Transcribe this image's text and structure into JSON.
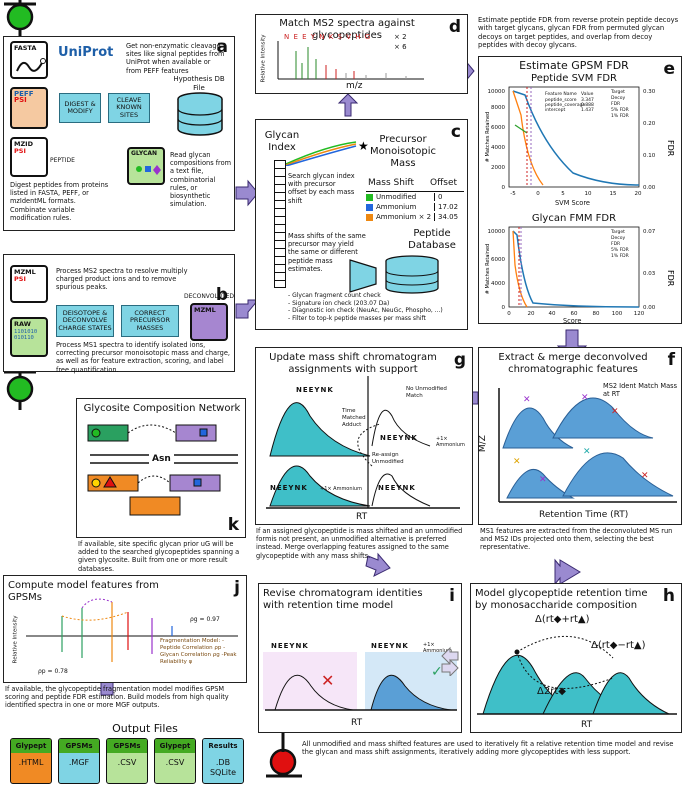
{
  "panel_a": {
    "label": "a",
    "uniprot": "UniProt",
    "uniprot_text": "Get non-enzymatic cleavage sites like signal peptides from UniProt when available or from PEFF features",
    "fasta": "FASTA",
    "peff": "PEFF",
    "psi": "PSI",
    "mzid": "MZID",
    "peptide": "PEPTIDE",
    "glycan": "GLYCAN",
    "digest": "DIGEST & MODIFY",
    "cleave": "CLEAVE KNOWN SITES",
    "db_title": "Hypothesis DB File",
    "digest_text": "Digest peptides from proteins listed in FASTA, PEFF, or mzIdentML formats. Combinate variable modification rules.",
    "glycan_text": "Read glycan compositions from a text file, combinatorial rules, or biosynthetic simulation."
  },
  "panel_b": {
    "label": "b",
    "mzml": "MZML",
    "psi": "PSI",
    "raw": "RAW",
    "raw_bits": "1101010\n010110",
    "deisotope": "DEISOTOPE & DECONVOLVE CHARGE STATES",
    "correct": "CORRECT PRECURSOR MASSES",
    "deconvoluted": "DECONVOLUTED",
    "top_text": "Process MS2 spectra to resolve multiply charged product ions and to remove spurious peaks.",
    "bottom_text": "Process MS1 spectra to identify isolated ions, correcting precursor monoisotopic mass and charge, as well as for feature extraction, scoring, and label free quantification."
  },
  "panel_c": {
    "label": "c",
    "glycan_index": "Glycan Index",
    "precursor": "Precursor Monoisotopic Mass",
    "search_text": "Search glycan index with precursor offset by each mass shift",
    "mass_shift": "Mass Shift",
    "offset": "Offset",
    "rows": [
      {
        "name": "Unmodified",
        "offset": "0",
        "color": "#22bb22"
      },
      {
        "name": "Ammonium",
        "offset": "17.02",
        "color": "#2266dd"
      },
      {
        "name": "Ammonium × 2",
        "offset": "34.05",
        "color": "#ee8811"
      }
    ],
    "mass_shift_text": "Mass shifts of the same precursor may yield the same or different peptide mass estimates.",
    "peptide_db": "Peptide Database",
    "checks": [
      "- Glycan fragment count check",
      "- Signature ion check (203.07 Da)",
      "- Diagnostic ion check (NeuAc, NeuGc, Phospho, ...)",
      "- Filter to top-k peptide masses per mass shift"
    ]
  },
  "panel_d": {
    "label": "d",
    "title": "Match MS2 spectra against glycopeptides",
    "ylabel": "Relative Intensity",
    "xlabel": "m/z",
    "sequence": "N E E Y N K S V H G",
    "x2": "× 2",
    "x6": "× 6"
  },
  "fdr_text": "Estimate peptide FDR from reverse protein peptide decoys with target glycans, glycan FDR from permuted glycan decoys on target peptides, and overlap from decoy peptides with decoy glycans.",
  "panel_e": {
    "label": "e",
    "title": "Estimate GPSM FDR",
    "svm_title": "Peptide SVM FDR",
    "svm_xlabel": "SVM Score",
    "svm_ylabel": "# Matches Retained",
    "fdr": "FDR",
    "svm_xticks": [
      "-5",
      "0",
      "5",
      "10",
      "15",
      "20"
    ],
    "svm_yticks": [
      "0",
      "2000",
      "4000",
      "6000",
      "8000",
      "10000"
    ],
    "fdr_ticks": [
      "0.00",
      "0.05",
      "0.10",
      "0.15",
      "0.20",
      "0.25",
      "0.30"
    ],
    "feature_table": {
      "headers": [
        "Feature Name",
        "Value"
      ],
      "rows": [
        [
          "peptide_score",
          "3.347"
        ],
        [
          "peptide_coverage",
          "0.888"
        ],
        [
          "intercept",
          "1.437"
        ]
      ]
    },
    "legend": [
      "Target",
      "Decoy",
      "FDR",
      "5% FDR",
      "1% FDR"
    ],
    "fmm_title": "Glycan FMM FDR",
    "fmm_xlabel": "Score",
    "fmm_xticks": [
      "0",
      "20",
      "40",
      "60",
      "80",
      "100",
      "120"
    ],
    "fmm_fdr_ticks": [
      "0.00",
      "0.01",
      "0.02",
      "0.03",
      "0.04",
      "0.05",
      "0.06",
      "0.07"
    ]
  },
  "panel_f": {
    "label": "f",
    "title": "Extract & merge deconvolved chromatographic features",
    "ms2_note": "MS2 Ident Match Mass at RT",
    "ylabel": "M/Z",
    "xlabel": "Retention Time (RT)",
    "caption": "MS1 features are extracted from the deconvoluted MS run and MS2 IDs projected onto them, selecting the best representative."
  },
  "panel_g": {
    "label": "g",
    "title": "Update mass shift chromatogram assignments with support",
    "seq": "NEEYNK",
    "time_matched": "Time Matched Adduct",
    "no_unmod": "No Unmodified Match",
    "reassign": "Re-assign Unmodified",
    "ammonium": "+1× Ammonium",
    "xlabel": "RT",
    "caption": "If an assigned glycopeptide is mass shifted and an unmodified formis not present, an unmodified alternative is preferred instead. Merge overlapping features assigned to the same glycopeptide with any mass shifts."
  },
  "panel_k": {
    "label": "k",
    "title": "Glycosite Composition Network",
    "asn": "Asn",
    "caption": "If available, site specific glycan prior uG will be added to the searched glycopeptides spanning a given glycosite. Built from one or more result databases."
  },
  "panel_j": {
    "label": "j",
    "title": "Compute model features from GPSMs",
    "ylabel": "Relative Intensity",
    "model_text": "Fragmentation Model: -Peptide Correlation ρp -Glycan Correlation ρg -Peak Reliability φ",
    "rho_g": "ρg = 0.97",
    "rho_p": "ρp = 0.78",
    "caption": "If available, the glycopeptide fragmentation model modifies GPSM scoring and peptide FDR estimation. Build models from high quality identified spectra in one or more MGF outputs."
  },
  "panel_i": {
    "label": "i",
    "title": "Revise chromatogram identities with retention time model",
    "seq": "NEEYNK",
    "ammonium": "+1× Ammonium",
    "xlabel": "RT"
  },
  "panel_h": {
    "label": "h",
    "title": "Model glycopeptide retention time by monosaccharide composition",
    "d1": "Δ(rt◆+rt▲)",
    "d2": "Δ(rt◆−rt▲)",
    "d3": "Δ2rt◆",
    "xlabel": "RT"
  },
  "output_title": "Output Files",
  "outputs": [
    {
      "head": "Glypept",
      "body": ".HTML",
      "hc": "#44aa22",
      "bc": "#f08a24"
    },
    {
      "head": "GPSMs",
      "body": ".MGF",
      "hc": "#44aa22",
      "bc": "#7fd4e4"
    },
    {
      "head": "GPSMs",
      "body": ".CSV",
      "hc": "#44aa22",
      "bc": "#b7e39a"
    },
    {
      "head": "Glypept",
      "body": ".CSV",
      "hc": "#44aa22",
      "bc": "#b7e39a"
    },
    {
      "head": "Results",
      "body": ".DB SQLite",
      "hc": "#7fd4e4",
      "bc": "#7fd4e4"
    }
  ],
  "final_text": "All unmodified and mass shifted features are used to iteratively fit a relative retention time model and revise the glycan and mass shift assignments, iteratively adding more glycopeptides with less support."
}
